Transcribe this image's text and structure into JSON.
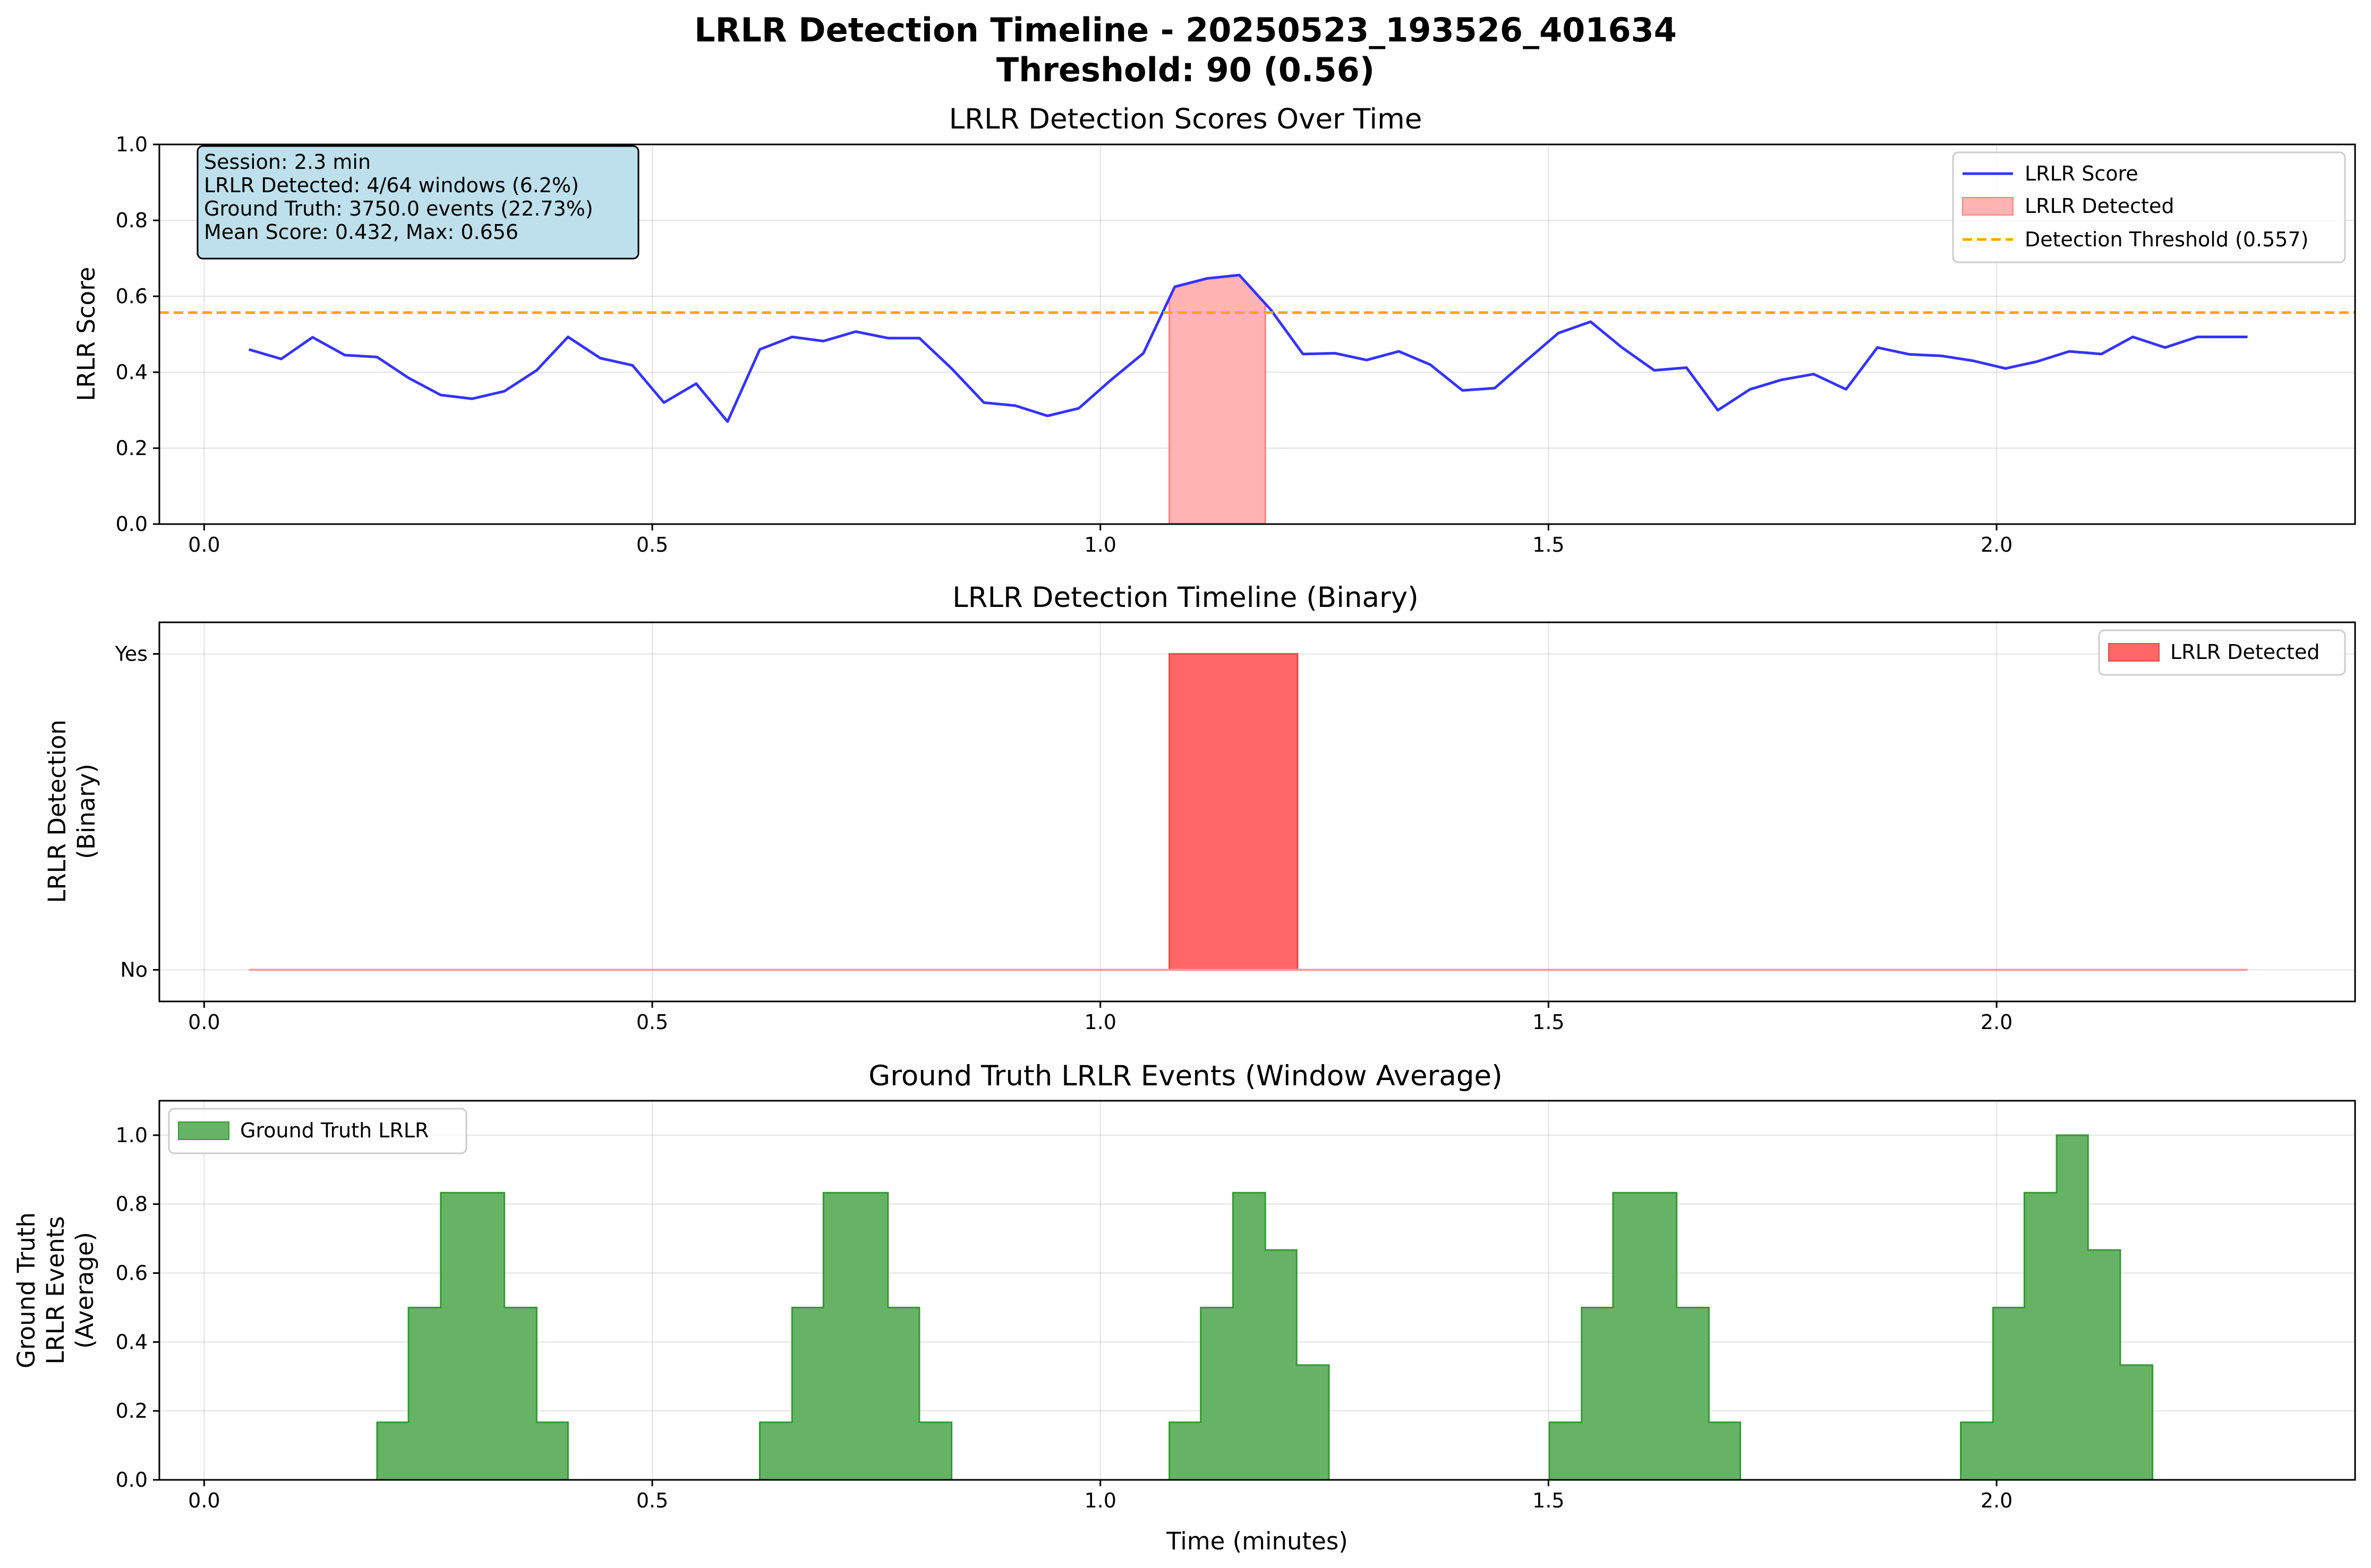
{
  "figure": {
    "suptitle_line1": "LRLR Detection Timeline - 20250523_193526_401634",
    "suptitle_line2": "Threshold: 90 (0.56)"
  },
  "info_box": {
    "line1": "Session: 2.3 min",
    "line2": "LRLR Detected: 4/64 windows (6.2%)",
    "line3": "Ground Truth: 3750.0 events (22.73%)",
    "line4": "Mean Score: 0.432, Max: 0.656"
  },
  "colors": {
    "score_line": "#3333ff",
    "threshold": "#ffa500",
    "detected_fill": "#ffb3b3",
    "detected_edge": "#ff8080",
    "binary_fill": "#ff6666",
    "binary_edge": "#e34a4a",
    "binary_line": "#ff9999",
    "ground_truth_fill": "#66b366",
    "ground_truth_edge": "#339933",
    "info_box_bg": "#bde0ec"
  },
  "chart_data": [
    {
      "type": "line",
      "title": "LRLR Detection Scores Over Time",
      "xlabel": "",
      "ylabel": "LRLR Score",
      "xlim": [
        -0.05,
        2.4
      ],
      "ylim": [
        0.0,
        1.0
      ],
      "xticks": [
        "0.0",
        "0.5",
        "1.0",
        "1.5",
        "2.0"
      ],
      "yticks": [
        "0.0",
        "0.2",
        "0.4",
        "0.6",
        "0.8",
        "1.0"
      ],
      "grid": true,
      "legend_position": "top-right",
      "series": [
        {
          "name": "LRLR Score",
          "x": [
            0.05,
            0.086,
            0.121,
            0.157,
            0.193,
            0.228,
            0.264,
            0.299,
            0.335,
            0.371,
            0.406,
            0.442,
            0.478,
            0.513,
            0.549,
            0.584,
            0.62,
            0.656,
            0.691,
            0.727,
            0.763,
            0.798,
            0.834,
            0.87,
            0.905,
            0.941,
            0.976,
            1.012,
            1.048,
            1.083,
            1.119,
            1.155,
            1.19,
            1.226,
            1.262,
            1.297,
            1.333,
            1.368,
            1.404,
            1.44,
            1.475,
            1.511,
            1.547,
            1.582,
            1.618,
            1.654,
            1.689,
            1.725,
            1.76,
            1.796,
            1.832,
            1.867,
            1.903,
            1.939,
            1.974,
            2.01,
            2.045,
            2.081,
            2.117,
            2.152,
            2.188,
            2.224,
            2.259,
            2.28
          ],
          "values": [
            0.46,
            0.435,
            0.492,
            0.445,
            0.44,
            0.385,
            0.34,
            0.33,
            0.35,
            0.405,
            0.493,
            0.437,
            0.418,
            0.32,
            0.37,
            0.27,
            0.46,
            0.493,
            0.482,
            0.507,
            0.49,
            0.49,
            0.41,
            0.32,
            0.312,
            0.285,
            0.305,
            0.38,
            0.45,
            0.625,
            0.647,
            0.656,
            0.565,
            0.448,
            0.45,
            0.432,
            0.455,
            0.42,
            0.352,
            0.358,
            0.43,
            0.503,
            0.533,
            0.465,
            0.405,
            0.412,
            0.3,
            0.355,
            0.38,
            0.395,
            0.355,
            0.465,
            0.447,
            0.443,
            0.43,
            0.41,
            0.428,
            0.455,
            0.448,
            0.493,
            0.465,
            0.493,
            0.493,
            0.493
          ]
        },
        {
          "name": "LRLR Detected",
          "x_start": 1.077,
          "x_end": 1.184,
          "note_values": "fill under score curve"
        },
        {
          "name": "Detection Threshold (0.557)",
          "value": 0.557
        }
      ]
    },
    {
      "type": "area",
      "title": "LRLR Detection Timeline (Binary)",
      "xlabel": "",
      "ylabel_line1": "LRLR Detection",
      "ylabel_line2": "(Binary)",
      "xlim": [
        -0.05,
        2.4
      ],
      "ylim": [
        -0.1,
        1.1
      ],
      "xticks": [
        "0.0",
        "0.5",
        "1.0",
        "1.5",
        "2.0"
      ],
      "yticks": [
        "No",
        "Yes"
      ],
      "grid": true,
      "legend_position": "top-right",
      "series": [
        {
          "name": "LRLR Detected",
          "x": [
            0.05,
            1.077,
            1.077,
            1.22,
            1.22,
            2.28
          ],
          "values": [
            0,
            0,
            1,
            1,
            0,
            0
          ]
        }
      ]
    },
    {
      "type": "area",
      "title": "Ground Truth LRLR Events (Window Average)",
      "xlabel": "Time (minutes)",
      "ylabel_line1": "Ground Truth",
      "ylabel_line2": "LRLR Events",
      "ylabel_line3": "(Average)",
      "xlim": [
        -0.05,
        2.4
      ],
      "ylim": [
        0.0,
        1.1
      ],
      "xticks": [
        "0.0",
        "0.5",
        "1.0",
        "1.5",
        "2.0"
      ],
      "yticks": [
        "0.0",
        "0.2",
        "0.4",
        "0.6",
        "0.8",
        "1.0"
      ],
      "grid": true,
      "legend_position": "top-left",
      "series": [
        {
          "name": "Ground Truth LRLR",
          "step_edges_x": [
            0.0,
            0.193,
            0.228,
            0.264,
            0.335,
            0.371,
            0.406,
            0.62,
            0.656,
            0.691,
            0.763,
            0.798,
            0.834,
            1.077,
            1.112,
            1.148,
            1.184,
            1.219,
            1.255,
            1.501,
            1.537,
            1.572,
            1.643,
            1.679,
            1.714,
            1.96,
            1.996,
            2.031,
            2.067,
            2.102,
            2.138,
            2.174,
            2.28
          ],
          "step_values": [
            0,
            0.167,
            0.5,
            0.833,
            0.5,
            0.167,
            0,
            0.167,
            0.5,
            0.833,
            0.5,
            0.167,
            0,
            0.167,
            0.5,
            0.833,
            0.667,
            0.333,
            0,
            0.167,
            0.5,
            0.833,
            0.5,
            0.167,
            0,
            0.167,
            0.5,
            0.833,
            1.0,
            0.667,
            0.333,
            0
          ]
        }
      ]
    }
  ]
}
